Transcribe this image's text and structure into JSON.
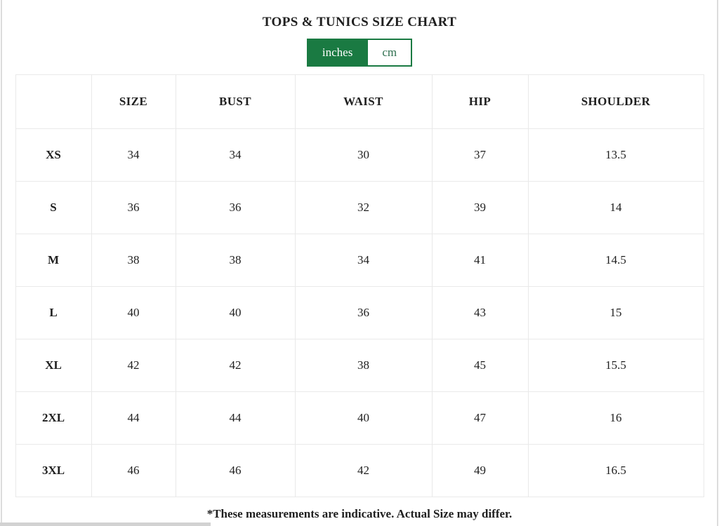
{
  "header": {
    "title": "TOPS & TUNICS SIZE CHART"
  },
  "unit_toggle": {
    "selected": "inches",
    "options": [
      {
        "label": "inches",
        "active": true
      },
      {
        "label": "cm",
        "active": false
      }
    ]
  },
  "chart_data": {
    "type": "table",
    "title": "TOPS & TUNICS SIZE CHART",
    "unit": "inches",
    "columns": [
      "",
      "SIZE",
      "BUST",
      "WAIST",
      "HIP",
      "SHOULDER"
    ],
    "rows": [
      {
        "label": "XS",
        "values": [
          "34",
          "34",
          "30",
          "37",
          "13.5"
        ]
      },
      {
        "label": "S",
        "values": [
          "36",
          "36",
          "32",
          "39",
          "14"
        ]
      },
      {
        "label": "M",
        "values": [
          "38",
          "38",
          "34",
          "41",
          "14.5"
        ]
      },
      {
        "label": "L",
        "values": [
          "40",
          "40",
          "36",
          "43",
          "15"
        ]
      },
      {
        "label": "XL",
        "values": [
          "42",
          "42",
          "38",
          "45",
          "15.5"
        ]
      },
      {
        "label": "2XL",
        "values": [
          "44",
          "44",
          "40",
          "47",
          "16"
        ]
      },
      {
        "label": "3XL",
        "values": [
          "46",
          "46",
          "42",
          "49",
          "16.5"
        ]
      }
    ]
  },
  "footer": {
    "note": "*These measurements are indicative. Actual Size may differ."
  },
  "colors": {
    "accent_green": "#1a7a42",
    "inactive_option_text": "#2f7050",
    "table_border": "#e9e9e9",
    "text": "#1f1f1f",
    "scrollbar_thumb": "#d2d2d2"
  }
}
